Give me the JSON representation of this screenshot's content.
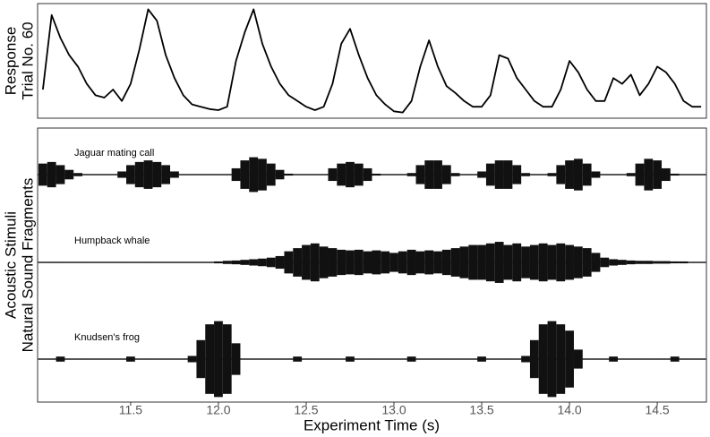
{
  "chart_data": [
    {
      "type": "line",
      "ylabel": [
        "Response",
        "Trial No. 60"
      ],
      "xlim": [
        10.97,
        14.78
      ],
      "ylim": [
        0,
        1
      ],
      "x": [
        11.0,
        11.05,
        11.1,
        11.15,
        11.2,
        11.25,
        11.3,
        11.35,
        11.4,
        11.45,
        11.5,
        11.55,
        11.6,
        11.65,
        11.7,
        11.75,
        11.8,
        11.85,
        11.9,
        11.95,
        12.0,
        12.05,
        12.1,
        12.15,
        12.2,
        12.25,
        12.3,
        12.35,
        12.4,
        12.45,
        12.5,
        12.55,
        12.6,
        12.65,
        12.7,
        12.75,
        12.8,
        12.85,
        12.9,
        12.95,
        13.0,
        13.05,
        13.1,
        13.15,
        13.2,
        13.25,
        13.3,
        13.35,
        13.4,
        13.45,
        13.5,
        13.55,
        13.6,
        13.65,
        13.7,
        13.75,
        13.8,
        13.85,
        13.9,
        13.95,
        14.0,
        14.05,
        14.1,
        14.15,
        14.2,
        14.25,
        14.3,
        14.35,
        14.4,
        14.45,
        14.5,
        14.55,
        14.6,
        14.65,
        14.7,
        14.75
      ],
      "series": [
        {
          "color": "#000000",
          "values": [
            0.25,
            0.9,
            0.7,
            0.55,
            0.45,
            0.3,
            0.2,
            0.18,
            0.25,
            0.15,
            0.3,
            0.6,
            0.95,
            0.85,
            0.55,
            0.35,
            0.2,
            0.12,
            0.1,
            0.08,
            0.07,
            0.1,
            0.5,
            0.75,
            0.95,
            0.65,
            0.45,
            0.3,
            0.2,
            0.15,
            0.1,
            0.07,
            0.1,
            0.3,
            0.65,
            0.78,
            0.55,
            0.35,
            0.2,
            0.12,
            0.06,
            0.05,
            0.15,
            0.45,
            0.68,
            0.45,
            0.28,
            0.22,
            0.15,
            0.1,
            0.1,
            0.2,
            0.55,
            0.52,
            0.35,
            0.25,
            0.15,
            0.1,
            0.1,
            0.25,
            0.5,
            0.4,
            0.25,
            0.15,
            0.15,
            0.35,
            0.3,
            0.38,
            0.2,
            0.3,
            0.45,
            0.4,
            0.3,
            0.15,
            0.1,
            0.1
          ]
        }
      ]
    },
    {
      "type": "waveform",
      "ylabel": [
        "Acoustic Stimuli",
        "Natural Sound Fragments"
      ],
      "xlabel": "Experiment Time (s)",
      "xlim": [
        10.97,
        14.78
      ],
      "ylim": [
        -1.3,
        1.3
      ],
      "xticks": [
        11.5,
        {
          "value": 12,
          "label": "12.0"
        },
        12.5,
        {
          "value": 13,
          "label": "13.0"
        },
        13.5,
        {
          "value": 14,
          "label": "14.0"
        },
        14.5
      ],
      "x": [
        11.0,
        11.05,
        11.1,
        11.15,
        11.2,
        11.25,
        11.3,
        11.35,
        11.4,
        11.45,
        11.5,
        11.55,
        11.6,
        11.65,
        11.7,
        11.75,
        11.8,
        11.85,
        11.9,
        11.95,
        12.0,
        12.05,
        12.1,
        12.15,
        12.2,
        12.25,
        12.3,
        12.35,
        12.4,
        12.45,
        12.5,
        12.55,
        12.6,
        12.65,
        12.7,
        12.75,
        12.8,
        12.85,
        12.9,
        12.95,
        13.0,
        13.05,
        13.1,
        13.15,
        13.2,
        13.25,
        13.3,
        13.35,
        13.4,
        13.45,
        13.5,
        13.55,
        13.6,
        13.65,
        13.7,
        13.75,
        13.8,
        13.85,
        13.9,
        13.95,
        14.0,
        14.05,
        14.1,
        14.15,
        14.2,
        14.25,
        14.3,
        14.35,
        14.4,
        14.45,
        14.5,
        14.55,
        14.6,
        14.65,
        14.7,
        14.75
      ],
      "series": [
        {
          "name": "Jaguar mating call",
          "color": "#111111",
          "values": [
            0.35,
            0.4,
            0.3,
            0.15,
            0.05,
            0.02,
            0.02,
            0.02,
            0.02,
            0.1,
            0.3,
            0.4,
            0.45,
            0.4,
            0.3,
            0.1,
            0.02,
            0.02,
            0.02,
            0.02,
            0.02,
            0.02,
            0.2,
            0.45,
            0.55,
            0.5,
            0.35,
            0.15,
            0.03,
            0.02,
            0.02,
            0.02,
            0.02,
            0.2,
            0.35,
            0.4,
            0.35,
            0.2,
            0.03,
            0.02,
            0.02,
            0.02,
            0.05,
            0.3,
            0.45,
            0.45,
            0.3,
            0.05,
            0.02,
            0.02,
            0.1,
            0.35,
            0.45,
            0.45,
            0.3,
            0.05,
            0.02,
            0.02,
            0.05,
            0.3,
            0.45,
            0.5,
            0.35,
            0.1,
            0.02,
            0.02,
            0.02,
            0.05,
            0.35,
            0.5,
            0.45,
            0.2,
            0.03,
            0.02,
            0.02,
            0.02
          ]
        },
        {
          "name": "Humpback whale",
          "color": "#111111",
          "values": [
            0.02,
            0.02,
            0.02,
            0.02,
            0.02,
            0.02,
            0.02,
            0.02,
            0.02,
            0.02,
            0.02,
            0.02,
            0.02,
            0.02,
            0.02,
            0.02,
            0.02,
            0.02,
            0.02,
            0.02,
            0.03,
            0.05,
            0.06,
            0.08,
            0.1,
            0.12,
            0.15,
            0.2,
            0.35,
            0.45,
            0.55,
            0.6,
            0.5,
            0.45,
            0.4,
            0.38,
            0.4,
            0.35,
            0.38,
            0.35,
            0.3,
            0.35,
            0.4,
            0.35,
            0.38,
            0.35,
            0.4,
            0.45,
            0.5,
            0.55,
            0.55,
            0.6,
            0.65,
            0.55,
            0.6,
            0.5,
            0.55,
            0.6,
            0.55,
            0.6,
            0.55,
            0.5,
            0.45,
            0.3,
            0.15,
            0.1,
            0.08,
            0.06,
            0.05,
            0.05,
            0.04,
            0.04,
            0.03,
            0.03,
            0.02,
            0.02
          ]
        },
        {
          "name": "Knudsen's frog",
          "color": "#111111",
          "values": [
            0.02,
            0.02,
            0.08,
            0.02,
            0.02,
            0.02,
            0.02,
            0.02,
            0.02,
            0.02,
            0.08,
            0.02,
            0.02,
            0.02,
            0.02,
            0.02,
            0.02,
            0.1,
            0.6,
            1.1,
            1.2,
            1.1,
            0.5,
            0.02,
            0.02,
            0.02,
            0.02,
            0.02,
            0.02,
            0.08,
            0.02,
            0.02,
            0.02,
            0.02,
            0.02,
            0.08,
            0.02,
            0.02,
            0.02,
            0.02,
            0.02,
            0.02,
            0.08,
            0.02,
            0.02,
            0.02,
            0.02,
            0.02,
            0.02,
            0.02,
            0.08,
            0.02,
            0.02,
            0.02,
            0.02,
            0.1,
            0.6,
            1.1,
            1.2,
            1.1,
            0.9,
            0.3,
            0.02,
            0.02,
            0.02,
            0.08,
            0.02,
            0.02,
            0.02,
            0.02,
            0.02,
            0.02,
            0.08,
            0.02,
            0.02,
            0.02
          ]
        }
      ]
    }
  ]
}
